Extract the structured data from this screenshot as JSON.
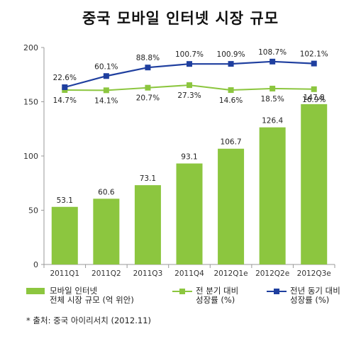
{
  "chart_data": {
    "type": "bar",
    "title": "중국 모바일 인터넷 시장 규모",
    "categories": [
      "2011Q1",
      "2011Q2",
      "2011Q3",
      "2011Q4",
      "2012Q1e",
      "2012Q2e",
      "2012Q3e"
    ],
    "ylim": [
      0,
      200
    ],
    "yticks": [
      "0",
      "50",
      "100",
      "150",
      "200"
    ],
    "grid": false,
    "legend_position": "bottom",
    "colors": {
      "bar": "#8cc63f",
      "qoq": "#8cc63f",
      "yoy": "#1f3f9f",
      "axis": "#999999"
    },
    "bars": {
      "name": "모바일 인터넷 전체 시장 규모 (억 위안)",
      "values": [
        53.1,
        60.6,
        73.1,
        93.1,
        106.7,
        126.4,
        147.8
      ],
      "labels": [
        "53.1",
        "60.6",
        "73.1",
        "93.1",
        "106.7",
        "126.4",
        "147.8"
      ]
    },
    "series": [
      {
        "name": "전 분기 대비 성장률 (%)",
        "values": [
          14.7,
          14.1,
          20.7,
          27.3,
          14.6,
          18.5,
          16.9
        ],
        "labels": [
          "14.7%",
          "14.1%",
          "20.7%",
          "27.3%",
          "14.6%",
          "18.5%",
          "16.9%"
        ]
      },
      {
        "name": "전년 동기 대비 성장률 (%)",
        "values": [
          22.6,
          60.1,
          88.8,
          100.7,
          100.9,
          108.7,
          102.1
        ],
        "labels": [
          "22.6%",
          "60.1%",
          "88.8%",
          "100.7%",
          "100.9%",
          "108.7%",
          "102.1%"
        ]
      }
    ]
  },
  "legend": {
    "bar_label": [
      "모바일 인터넷",
      "전체 시장 규모 (억 위안)"
    ],
    "qoq_label": [
      "전 분기 대비",
      "성장률 (%)"
    ],
    "yoy_label": [
      "전년 동기 대비",
      "성장률 (%)"
    ]
  },
  "source_note": "* 출처: 중국 아이리서치 (2012.11)"
}
